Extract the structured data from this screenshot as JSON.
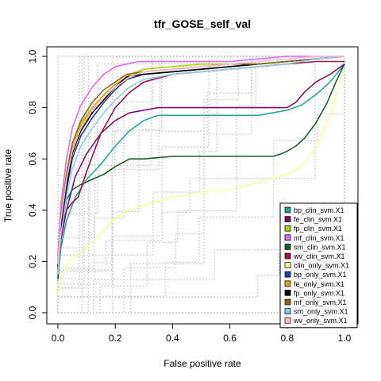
{
  "chart_data": {
    "type": "line",
    "title": "tfr_GOSE_self_val",
    "xlabel": "False positive rate",
    "ylabel": "True positive rate",
    "xlim": [
      0,
      1
    ],
    "ylim": [
      0,
      1
    ],
    "x_ticks": [
      "0.0",
      "0.2",
      "0.4",
      "0.6",
      "0.8",
      "1.0"
    ],
    "y_ticks": [
      "0.0",
      "0.2",
      "0.4",
      "0.6",
      "0.8",
      "1.0"
    ],
    "legend_position": "bottom-right",
    "background_curves": "gray dotted step curves (fold-level ROC curves)",
    "series": [
      {
        "name": "bp_clin_svm.X1",
        "color": "#26a69a",
        "x": [
          0,
          0.01,
          0.03,
          0.06,
          0.1,
          0.15,
          0.2,
          0.25,
          0.3,
          0.35,
          0.4,
          0.5,
          0.6,
          0.7,
          0.75,
          0.8,
          0.85,
          0.9,
          0.95,
          1.0
        ],
        "y": [
          0.14,
          0.25,
          0.36,
          0.45,
          0.52,
          0.58,
          0.65,
          0.71,
          0.75,
          0.77,
          0.77,
          0.77,
          0.77,
          0.77,
          0.78,
          0.79,
          0.81,
          0.85,
          0.9,
          0.97
        ]
      },
      {
        "name": "fe_clin_svm.X1",
        "color": "#7b1070",
        "x": [
          0,
          0.01,
          0.03,
          0.06,
          0.1,
          0.15,
          0.2,
          0.25,
          0.3,
          0.35,
          0.4,
          0.5,
          0.6,
          0.7,
          0.8,
          0.83,
          0.86,
          0.9,
          0.95,
          1.0
        ],
        "y": [
          0.15,
          0.28,
          0.4,
          0.53,
          0.62,
          0.7,
          0.75,
          0.78,
          0.79,
          0.8,
          0.8,
          0.8,
          0.8,
          0.8,
          0.8,
          0.82,
          0.86,
          0.9,
          0.93,
          0.97
        ]
      },
      {
        "name": "fp_clin_svm.X1",
        "color": "#a6d400",
        "x": [
          0,
          0.01,
          0.03,
          0.05,
          0.08,
          0.12,
          0.16,
          0.2,
          0.25,
          0.3,
          0.4,
          0.5,
          0.6,
          0.7,
          0.8,
          0.9,
          1.0
        ],
        "y": [
          0.2,
          0.38,
          0.55,
          0.66,
          0.74,
          0.8,
          0.85,
          0.89,
          0.93,
          0.95,
          0.96,
          0.97,
          0.97,
          0.97,
          0.98,
          0.99,
          1.0
        ]
      },
      {
        "name": "mf_clin_svm.X1",
        "color": "#e066ee",
        "x": [
          0,
          0.01,
          0.03,
          0.05,
          0.08,
          0.12,
          0.16,
          0.2,
          0.24,
          0.28,
          0.35,
          0.4,
          0.5,
          0.6,
          0.7,
          0.8,
          0.9,
          1.0
        ],
        "y": [
          0.22,
          0.42,
          0.6,
          0.72,
          0.81,
          0.88,
          0.93,
          0.96,
          0.97,
          0.98,
          0.98,
          0.98,
          0.98,
          0.98,
          0.99,
          1.0,
          1.0,
          1.0
        ]
      },
      {
        "name": "sm_clin_svm.X1",
        "color": "#1b5e2b",
        "x": [
          0,
          0.01,
          0.02,
          0.03,
          0.05,
          0.08,
          0.12,
          0.16,
          0.2,
          0.25,
          0.3,
          0.4,
          0.5,
          0.6,
          0.7,
          0.75,
          0.78,
          0.8,
          0.83,
          0.86,
          0.9,
          0.94,
          0.97,
          1.0
        ],
        "y": [
          0.13,
          0.28,
          0.38,
          0.44,
          0.48,
          0.5,
          0.52,
          0.54,
          0.57,
          0.6,
          0.6,
          0.61,
          0.61,
          0.61,
          0.61,
          0.61,
          0.62,
          0.63,
          0.65,
          0.68,
          0.74,
          0.82,
          0.9,
          0.97
        ]
      },
      {
        "name": "wv_clin_svm.X1",
        "color": "#9e1549",
        "x": [
          0,
          0.01,
          0.02,
          0.03,
          0.05,
          0.07,
          0.1,
          0.15,
          0.2,
          0.25,
          0.3,
          0.4,
          0.5,
          0.6,
          0.7,
          0.8,
          0.9,
          1.0
        ],
        "y": [
          0.16,
          0.28,
          0.36,
          0.4,
          0.43,
          0.45,
          0.55,
          0.7,
          0.8,
          0.86,
          0.9,
          0.93,
          0.94,
          0.95,
          0.96,
          0.97,
          0.98,
          0.98
        ]
      },
      {
        "name": "clin_only_svm.X1",
        "color": "#f7ff9e",
        "x": [
          0,
          0.01,
          0.02,
          0.03,
          0.05,
          0.08,
          0.1,
          0.15,
          0.2,
          0.25,
          0.3,
          0.4,
          0.5,
          0.6,
          0.7,
          0.8,
          0.85,
          0.9,
          0.95,
          1.0
        ],
        "y": [
          0.07,
          0.12,
          0.16,
          0.19,
          0.21,
          0.23,
          0.25,
          0.31,
          0.37,
          0.4,
          0.42,
          0.45,
          0.47,
          0.48,
          0.51,
          0.54,
          0.57,
          0.64,
          0.77,
          0.95
        ]
      },
      {
        "name": "bp_only_svm.X1",
        "color": "#1f3fa3",
        "x": [
          0,
          0.01,
          0.03,
          0.05,
          0.08,
          0.12,
          0.16,
          0.2,
          0.24,
          0.3,
          0.4,
          0.5,
          0.6,
          0.7,
          0.8,
          0.9,
          1.0
        ],
        "y": [
          0.17,
          0.33,
          0.48,
          0.6,
          0.69,
          0.76,
          0.82,
          0.87,
          0.91,
          0.93,
          0.94,
          0.95,
          0.96,
          0.97,
          0.98,
          0.99,
          1.0
        ]
      },
      {
        "name": "fe_only_svm.X1",
        "color": "#d9a11a",
        "x": [
          0,
          0.01,
          0.03,
          0.05,
          0.08,
          0.12,
          0.16,
          0.2,
          0.24,
          0.3,
          0.4,
          0.5,
          0.6,
          0.7,
          0.8,
          0.9,
          1.0
        ],
        "y": [
          0.19,
          0.36,
          0.53,
          0.64,
          0.73,
          0.8,
          0.85,
          0.89,
          0.92,
          0.94,
          0.95,
          0.96,
          0.97,
          0.97,
          0.98,
          0.99,
          1.0
        ]
      },
      {
        "name": "fp_only_svm.X1",
        "color": "#000000",
        "x": [
          0,
          0.01,
          0.03,
          0.05,
          0.08,
          0.12,
          0.16,
          0.2,
          0.24,
          0.3,
          0.4,
          0.5,
          0.6,
          0.7,
          0.8,
          0.9,
          1.0
        ],
        "y": [
          0.18,
          0.34,
          0.5,
          0.62,
          0.71,
          0.78,
          0.83,
          0.88,
          0.92,
          0.93,
          0.94,
          0.95,
          0.96,
          0.97,
          0.98,
          0.99,
          1.0
        ]
      },
      {
        "name": "mf_only_svm.X1",
        "color": "#8b6914",
        "x": [
          0,
          0.01,
          0.03,
          0.05,
          0.08,
          0.12,
          0.16,
          0.2,
          0.24,
          0.3,
          0.4,
          0.5,
          0.6,
          0.7,
          0.8,
          0.9,
          1.0
        ],
        "y": [
          0.2,
          0.37,
          0.54,
          0.66,
          0.75,
          0.82,
          0.87,
          0.9,
          0.93,
          0.94,
          0.95,
          0.96,
          0.97,
          0.97,
          0.98,
          0.99,
          1.0
        ]
      },
      {
        "name": "sm_only_svm.X1",
        "color": "#8ecae6",
        "x": [
          0,
          0.01,
          0.03,
          0.05,
          0.08,
          0.12,
          0.16,
          0.2,
          0.25,
          0.3,
          0.4,
          0.5,
          0.6,
          0.7,
          0.8,
          0.9,
          1.0
        ],
        "y": [
          0.15,
          0.3,
          0.45,
          0.56,
          0.65,
          0.72,
          0.78,
          0.83,
          0.88,
          0.91,
          0.93,
          0.94,
          0.95,
          0.96,
          0.97,
          0.99,
          1.0
        ]
      },
      {
        "name": "wv_only_svm.X1",
        "color": "#f8bbd9",
        "x": [
          0,
          0.01,
          0.03,
          0.05,
          0.08,
          0.12,
          0.16,
          0.2,
          0.25,
          0.3,
          0.4,
          0.5,
          0.6,
          0.7,
          0.8,
          0.9,
          1.0
        ],
        "y": [
          0.19,
          0.36,
          0.52,
          0.63,
          0.72,
          0.79,
          0.84,
          0.88,
          0.92,
          0.94,
          0.95,
          0.96,
          0.97,
          0.98,
          0.99,
          1.0,
          1.0
        ]
      }
    ]
  }
}
